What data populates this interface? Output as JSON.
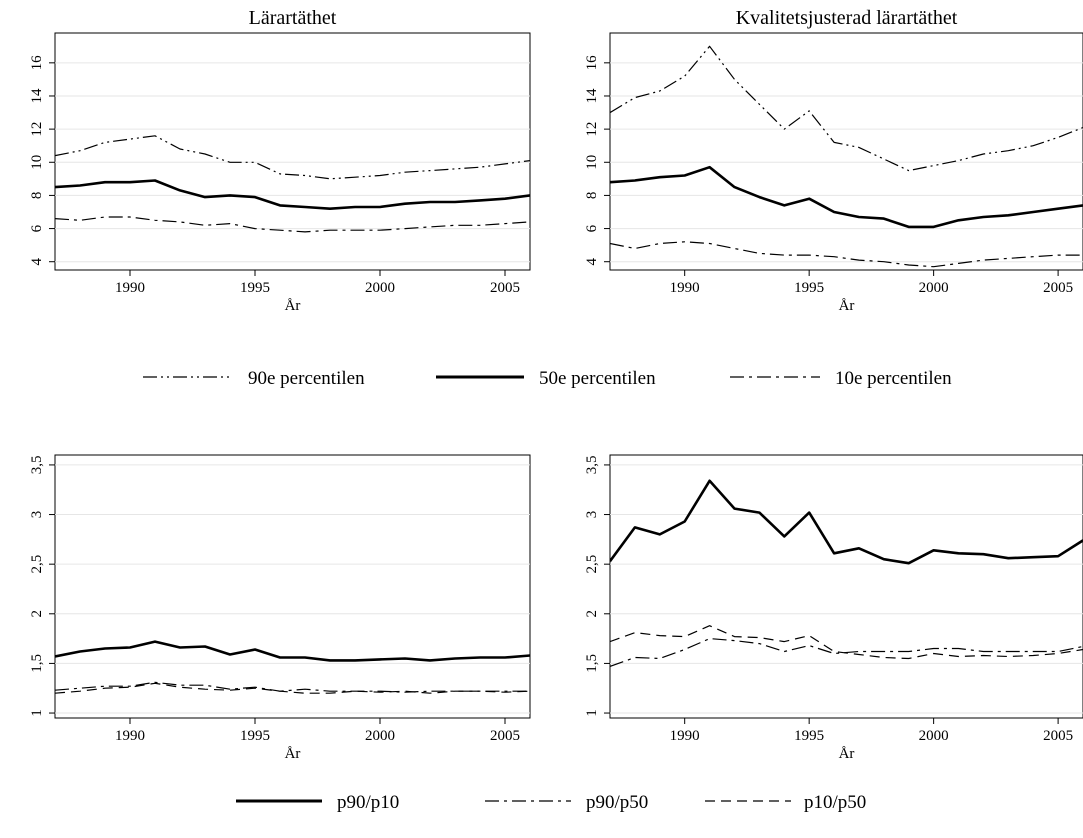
{
  "chart_data": [
    {
      "type": "line",
      "title": "Lärartäthet",
      "xlabel": "År",
      "ylabel": "",
      "x": [
        1987,
        1988,
        1989,
        1990,
        1991,
        1992,
        1993,
        1994,
        1995,
        1996,
        1997,
        1998,
        1999,
        2000,
        2001,
        2002,
        2003,
        2004,
        2005,
        2006
      ],
      "xticks": [
        "1990",
        "1995",
        "2000",
        "2005"
      ],
      "yticks": [
        "4",
        "6",
        "8",
        "10",
        "12",
        "14",
        "16"
      ],
      "xlim": [
        1987,
        2006
      ],
      "ylim": [
        3.5,
        17.8
      ],
      "series": [
        {
          "name": "90e percentilen",
          "style": "dash-dot-dot",
          "values": [
            10.4,
            10.7,
            11.2,
            11.4,
            11.6,
            10.8,
            10.5,
            10.0,
            10.0,
            9.3,
            9.2,
            9.0,
            9.1,
            9.2,
            9.4,
            9.5,
            9.6,
            9.7,
            9.9,
            10.1
          ]
        },
        {
          "name": "50e percentilen",
          "style": "solid",
          "values": [
            8.5,
            8.6,
            8.8,
            8.8,
            8.9,
            8.3,
            7.9,
            8.0,
            7.9,
            7.4,
            7.3,
            7.2,
            7.3,
            7.3,
            7.5,
            7.6,
            7.6,
            7.7,
            7.8,
            8.0
          ]
        },
        {
          "name": "10e percentilen",
          "style": "dash-dot",
          "values": [
            6.6,
            6.5,
            6.7,
            6.7,
            6.5,
            6.4,
            6.2,
            6.3,
            6.0,
            5.9,
            5.8,
            5.9,
            5.9,
            5.9,
            6.0,
            6.1,
            6.2,
            6.2,
            6.3,
            6.4
          ]
        }
      ]
    },
    {
      "type": "line",
      "title": "Kvalitetsjusterad lärartäthet",
      "xlabel": "År",
      "ylabel": "",
      "x": [
        1987,
        1988,
        1989,
        1990,
        1991,
        1992,
        1993,
        1994,
        1995,
        1996,
        1997,
        1998,
        1999,
        2000,
        2001,
        2002,
        2003,
        2004,
        2005,
        2006
      ],
      "xticks": [
        "1990",
        "1995",
        "2000",
        "2005"
      ],
      "yticks": [
        "4",
        "6",
        "8",
        "10",
        "12",
        "14",
        "16"
      ],
      "xlim": [
        1987,
        2006
      ],
      "ylim": [
        3.5,
        17.8
      ],
      "series": [
        {
          "name": "90e percentilen",
          "style": "dash-dot-dot",
          "values": [
            13.0,
            13.9,
            14.3,
            15.2,
            17.0,
            15.0,
            13.5,
            12.0,
            13.1,
            11.2,
            10.9,
            10.2,
            9.5,
            9.8,
            10.1,
            10.5,
            10.7,
            11.0,
            11.5,
            12.1
          ]
        },
        {
          "name": "50e percentilen",
          "style": "solid",
          "values": [
            8.8,
            8.9,
            9.1,
            9.2,
            9.7,
            8.5,
            7.9,
            7.4,
            7.8,
            7.0,
            6.7,
            6.6,
            6.1,
            6.1,
            6.5,
            6.7,
            6.8,
            7.0,
            7.2,
            7.4
          ]
        },
        {
          "name": "10e percentilen",
          "style": "dash-dot",
          "values": [
            5.1,
            4.8,
            5.1,
            5.2,
            5.1,
            4.8,
            4.5,
            4.4,
            4.4,
            4.3,
            4.1,
            4.0,
            3.8,
            3.7,
            3.9,
            4.1,
            4.2,
            4.3,
            4.4,
            4.4
          ]
        }
      ]
    },
    {
      "type": "line",
      "title": "",
      "xlabel": "År",
      "ylabel": "",
      "x": [
        1987,
        1988,
        1989,
        1990,
        1991,
        1992,
        1993,
        1994,
        1995,
        1996,
        1997,
        1998,
        1999,
        2000,
        2001,
        2002,
        2003,
        2004,
        2005,
        2006
      ],
      "xticks": [
        "1990",
        "1995",
        "2000",
        "2005"
      ],
      "yticks": [
        "1",
        "1,5",
        "2",
        "2,5",
        "3",
        "3,5"
      ],
      "xlim": [
        1987,
        2006
      ],
      "ylim": [
        0.95,
        3.6
      ],
      "series": [
        {
          "name": "p90/p10",
          "style": "solid",
          "values": [
            1.57,
            1.62,
            1.65,
            1.66,
            1.72,
            1.66,
            1.67,
            1.59,
            1.64,
            1.56,
            1.56,
            1.53,
            1.53,
            1.54,
            1.55,
            1.53,
            1.55,
            1.56,
            1.56,
            1.58
          ]
        },
        {
          "name": "p90/p50",
          "style": "dash-dot",
          "values": [
            1.23,
            1.25,
            1.27,
            1.27,
            1.31,
            1.28,
            1.28,
            1.24,
            1.26,
            1.22,
            1.24,
            1.22,
            1.22,
            1.22,
            1.21,
            1.22,
            1.22,
            1.22,
            1.22,
            1.22
          ]
        },
        {
          "name": "p10/p50",
          "style": "dash",
          "values": [
            1.2,
            1.22,
            1.25,
            1.26,
            1.3,
            1.26,
            1.24,
            1.23,
            1.25,
            1.22,
            1.2,
            1.2,
            1.22,
            1.21,
            1.22,
            1.2,
            1.22,
            1.22,
            1.21,
            1.22
          ]
        }
      ]
    },
    {
      "type": "line",
      "title": "",
      "xlabel": "År",
      "ylabel": "",
      "x": [
        1987,
        1988,
        1989,
        1990,
        1991,
        1992,
        1993,
        1994,
        1995,
        1996,
        1997,
        1998,
        1999,
        2000,
        2001,
        2002,
        2003,
        2004,
        2005,
        2006
      ],
      "xticks": [
        "1990",
        "1995",
        "2000",
        "2005"
      ],
      "yticks": [
        "1",
        "1,5",
        "2",
        "2,5",
        "3",
        "3,5"
      ],
      "xlim": [
        1987,
        2006
      ],
      "ylim": [
        0.95,
        3.6
      ],
      "series": [
        {
          "name": "p90/p10",
          "style": "solid",
          "values": [
            2.53,
            2.87,
            2.8,
            2.93,
            3.34,
            3.06,
            3.02,
            2.78,
            3.02,
            2.61,
            2.66,
            2.55,
            2.51,
            2.64,
            2.61,
            2.6,
            2.56,
            2.57,
            2.58,
            2.74
          ]
        },
        {
          "name": "p90/p50",
          "style": "dash-dot",
          "values": [
            1.47,
            1.56,
            1.55,
            1.64,
            1.75,
            1.73,
            1.7,
            1.62,
            1.68,
            1.6,
            1.62,
            1.62,
            1.62,
            1.65,
            1.65,
            1.62,
            1.62,
            1.62,
            1.62,
            1.67
          ]
        },
        {
          "name": "p10/p50",
          "style": "dash",
          "values": [
            1.72,
            1.81,
            1.78,
            1.77,
            1.88,
            1.77,
            1.76,
            1.72,
            1.78,
            1.62,
            1.59,
            1.56,
            1.55,
            1.6,
            1.57,
            1.58,
            1.57,
            1.58,
            1.6,
            1.64
          ]
        }
      ]
    }
  ],
  "legends": [
    {
      "items": [
        {
          "label": "90e percentilen",
          "style": "dash-dot-dot"
        },
        {
          "label": "50e percentilen",
          "style": "solid"
        },
        {
          "label": "10e percentilen",
          "style": "dash-dot"
        }
      ]
    },
    {
      "items": [
        {
          "label": "p90/p10",
          "style": "solid"
        },
        {
          "label": "p90/p50",
          "style": "dash-dot"
        },
        {
          "label": "p10/p50",
          "style": "dash"
        }
      ]
    }
  ]
}
